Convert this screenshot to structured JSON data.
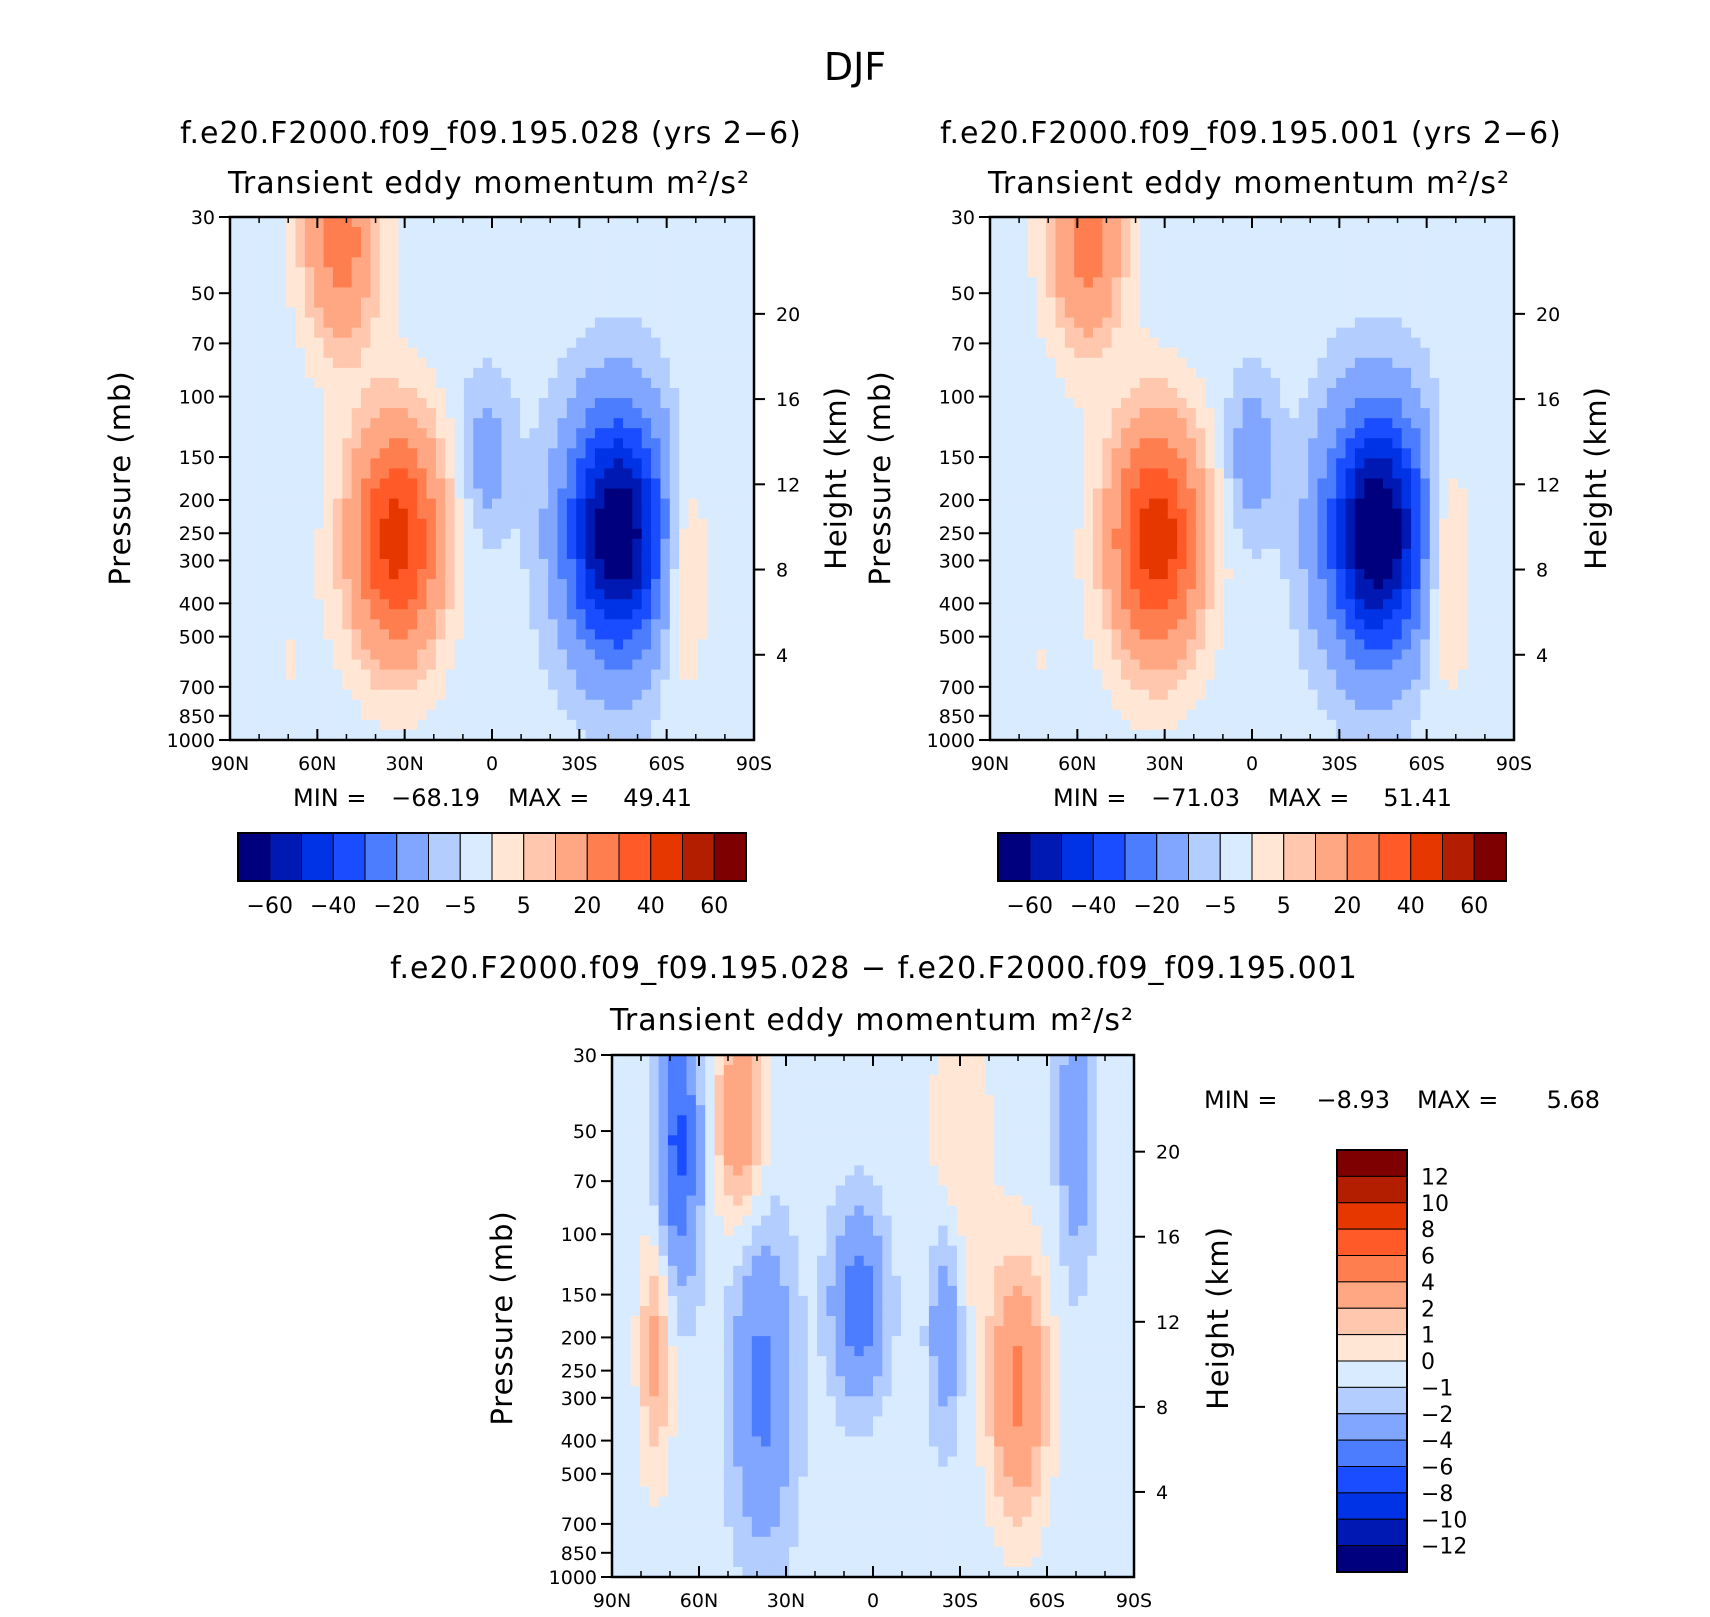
{
  "figure": {
    "title": "DJF"
  },
  "chart_data": [
    {
      "id": "p1",
      "type": "heatmap",
      "title": "f.e20.F2000.f09_f09.195.028 (yrs 2−6)",
      "subtitle": "Transient eddy momentum",
      "units_label": "m²/s²",
      "ylabel": "Pressure (mb)",
      "y2label": "Height (km)",
      "x_ticks": [
        "90N",
        "60N",
        "30N",
        "0",
        "30S",
        "60S",
        "90S"
      ],
      "x_tick_values": [
        90,
        60,
        30,
        0,
        -30,
        -60,
        -90
      ],
      "y_ticks": [
        "30",
        "50",
        "70",
        "100",
        "150",
        "200",
        "250",
        "300",
        "400",
        "500",
        "700",
        "850",
        "1000"
      ],
      "y_tick_values": [
        30,
        50,
        70,
        100,
        150,
        200,
        250,
        300,
        400,
        500,
        700,
        850,
        1000
      ],
      "y2_ticks": [
        "20",
        "16",
        "12",
        "8",
        "4"
      ],
      "y2_tick_values": [
        20,
        16,
        12,
        8,
        4
      ],
      "xlim": [
        90,
        -90
      ],
      "ylim": [
        1000,
        30
      ],
      "min_label": "MIN =",
      "min_value": "−68.19",
      "max_label": "MAX =",
      "max_value": "49.41",
      "features": [
        {
          "lat": -43,
          "p": 250,
          "amp": -68,
          "wlat": 12,
          "wp": 0.55
        },
        {
          "lat": 33,
          "p": 260,
          "amp": 48,
          "wlat": 11,
          "wp": 0.55
        },
        {
          "lat": 52,
          "p": 35,
          "amp": 28,
          "wlat": 9,
          "wp": 0.5
        },
        {
          "lat": -65,
          "p": 300,
          "amp": 15,
          "wlat": 6,
          "wp": 0.55
        },
        {
          "lat": 2,
          "p": 150,
          "amp": -12,
          "wlat": 6,
          "wp": 0.35
        },
        {
          "lat": 70,
          "p": 600,
          "amp": 3,
          "wlat": 8,
          "wp": 0.6
        }
      ],
      "background": -3,
      "colorbar_labels": [
        "−60",
        "−40",
        "−20",
        "−5",
        "5",
        "20",
        "40",
        "60"
      ],
      "levels": [
        -70,
        -60,
        -50,
        -40,
        -30,
        -20,
        -10,
        -5,
        0,
        5,
        10,
        20,
        30,
        40,
        50,
        60
      ],
      "colors": [
        "#00007f",
        "#0019b2",
        "#0033e5",
        "#1a4dff",
        "#4d7dff",
        "#80a6ff",
        "#b3cdff",
        "#d9ebff",
        "#ffe6d5",
        "#ffc7ae",
        "#ffa682",
        "#ff7e50",
        "#ff5a28",
        "#e63700",
        "#b31e00",
        "#7f0000"
      ]
    },
    {
      "id": "p2",
      "type": "heatmap",
      "title": "f.e20.F2000.f09_f09.195.001 (yrs 2−6)",
      "subtitle": "Transient eddy momentum",
      "units_label": "m²/s²",
      "ylabel": "Pressure (mb)",
      "y2label": "Height (km)",
      "x_ticks": [
        "90N",
        "60N",
        "30N",
        "0",
        "30S",
        "60S",
        "90S"
      ],
      "x_tick_values": [
        90,
        60,
        30,
        0,
        -30,
        -60,
        -90
      ],
      "y_ticks": [
        "30",
        "50",
        "70",
        "100",
        "150",
        "200",
        "250",
        "300",
        "400",
        "500",
        "700",
        "850",
        "1000"
      ],
      "y_tick_values": [
        30,
        50,
        70,
        100,
        150,
        200,
        250,
        300,
        400,
        500,
        700,
        850,
        1000
      ],
      "y2_ticks": [
        "20",
        "16",
        "12",
        "8",
        "4"
      ],
      "y2_tick_values": [
        20,
        16,
        12,
        8,
        4
      ],
      "xlim": [
        90,
        -90
      ],
      "ylim": [
        1000,
        30
      ],
      "min_label": "MIN =",
      "min_value": "−71.03",
      "max_label": "MAX =",
      "max_value": "51.41",
      "features": [
        {
          "lat": -43,
          "p": 250,
          "amp": -71,
          "wlat": 12,
          "wp": 0.55
        },
        {
          "lat": 33,
          "p": 260,
          "amp": 50,
          "wlat": 11,
          "wp": 0.55
        },
        {
          "lat": 57,
          "p": 35,
          "amp": 28,
          "wlat": 9,
          "wp": 0.5
        },
        {
          "lat": -66,
          "p": 300,
          "amp": 16,
          "wlat": 6,
          "wp": 0.55
        },
        {
          "lat": 0,
          "p": 150,
          "amp": -13,
          "wlat": 6,
          "wp": 0.35
        },
        {
          "lat": 72,
          "p": 600,
          "amp": 3,
          "wlat": 8,
          "wp": 0.6
        }
      ],
      "background": -3,
      "colorbar_labels": [
        "−60",
        "−40",
        "−20",
        "−5",
        "5",
        "20",
        "40",
        "60"
      ],
      "levels": [
        -70,
        -60,
        -50,
        -40,
        -30,
        -20,
        -10,
        -5,
        0,
        5,
        10,
        20,
        30,
        40,
        50,
        60
      ],
      "colors": [
        "#00007f",
        "#0019b2",
        "#0033e5",
        "#1a4dff",
        "#4d7dff",
        "#80a6ff",
        "#b3cdff",
        "#d9ebff",
        "#ffe6d5",
        "#ffc7ae",
        "#ffa682",
        "#ff7e50",
        "#ff5a28",
        "#e63700",
        "#b31e00",
        "#7f0000"
      ]
    },
    {
      "id": "p3",
      "type": "heatmap",
      "title": "f.e20.F2000.f09_f09.195.028 − f.e20.F2000.f09_f09.195.001",
      "subtitle": "Transient eddy momentum",
      "units_label": "m²/s²",
      "ylabel": "Pressure (mb)",
      "y2label": "Height (km)",
      "x_ticks": [
        "90N",
        "60N",
        "30N",
        "0",
        "30S",
        "60S",
        "90S"
      ],
      "x_tick_values": [
        90,
        60,
        30,
        0,
        -30,
        -60,
        -90
      ],
      "y_ticks": [
        "30",
        "50",
        "70",
        "100",
        "150",
        "200",
        "250",
        "300",
        "400",
        "500",
        "700",
        "850",
        "1000"
      ],
      "y_tick_values": [
        30,
        50,
        70,
        100,
        150,
        200,
        250,
        300,
        400,
        500,
        700,
        850,
        1000
      ],
      "y2_ticks": [
        "20",
        "16",
        "12",
        "8",
        "4"
      ],
      "y2_tick_values": [
        20,
        16,
        12,
        8,
        4
      ],
      "xlim": [
        90,
        -90
      ],
      "ylim": [
        1000,
        30
      ],
      "min_label": "MIN =",
      "min_value": "−8.93",
      "max_label": "MAX =",
      "max_value": "5.68",
      "features": [
        {
          "lat": 67,
          "p": 55,
          "amp": -6,
          "wlat": 5,
          "wp": 0.6
        },
        {
          "lat": 46,
          "p": 45,
          "amp": 4,
          "wlat": 6,
          "wp": 0.5
        },
        {
          "lat": 75,
          "p": 220,
          "amp": 3,
          "wlat": 4,
          "wp": 0.6
        },
        {
          "lat": 38,
          "p": 280,
          "amp": -4,
          "wlat": 7,
          "wp": 0.7
        },
        {
          "lat": 5,
          "p": 160,
          "amp": -5,
          "wlat": 6,
          "wp": 0.4
        },
        {
          "lat": -25,
          "p": 180,
          "amp": -3,
          "wlat": 4,
          "wp": 0.5
        },
        {
          "lat": -50,
          "p": 280,
          "amp": 5,
          "wlat": 7,
          "wp": 0.6
        },
        {
          "lat": -70,
          "p": 50,
          "amp": -3,
          "wlat": 4,
          "wp": 0.6
        },
        {
          "lat": -30,
          "p": 60,
          "amp": 1.5,
          "wlat": 8,
          "wp": 0.8
        }
      ],
      "background": -0.6,
      "colorbar_labels": [
        "12",
        "10",
        "8",
        "6",
        "4",
        "2",
        "1",
        "0",
        "−1",
        "−2",
        "−4",
        "−6",
        "−8",
        "−10",
        "−12"
      ],
      "levels": [
        -14,
        -12,
        -10,
        -8,
        -6,
        -4,
        -2,
        -1,
        0,
        1,
        2,
        4,
        6,
        8,
        10,
        12
      ],
      "colors": [
        "#00007f",
        "#0019b2",
        "#0033e5",
        "#1a4dff",
        "#4d7dff",
        "#80a6ff",
        "#b3cdff",
        "#d9ebff",
        "#ffe6d5",
        "#ffc7ae",
        "#ffa682",
        "#ff7e50",
        "#ff5a28",
        "#e63700",
        "#b31e00",
        "#7f0000"
      ]
    }
  ]
}
